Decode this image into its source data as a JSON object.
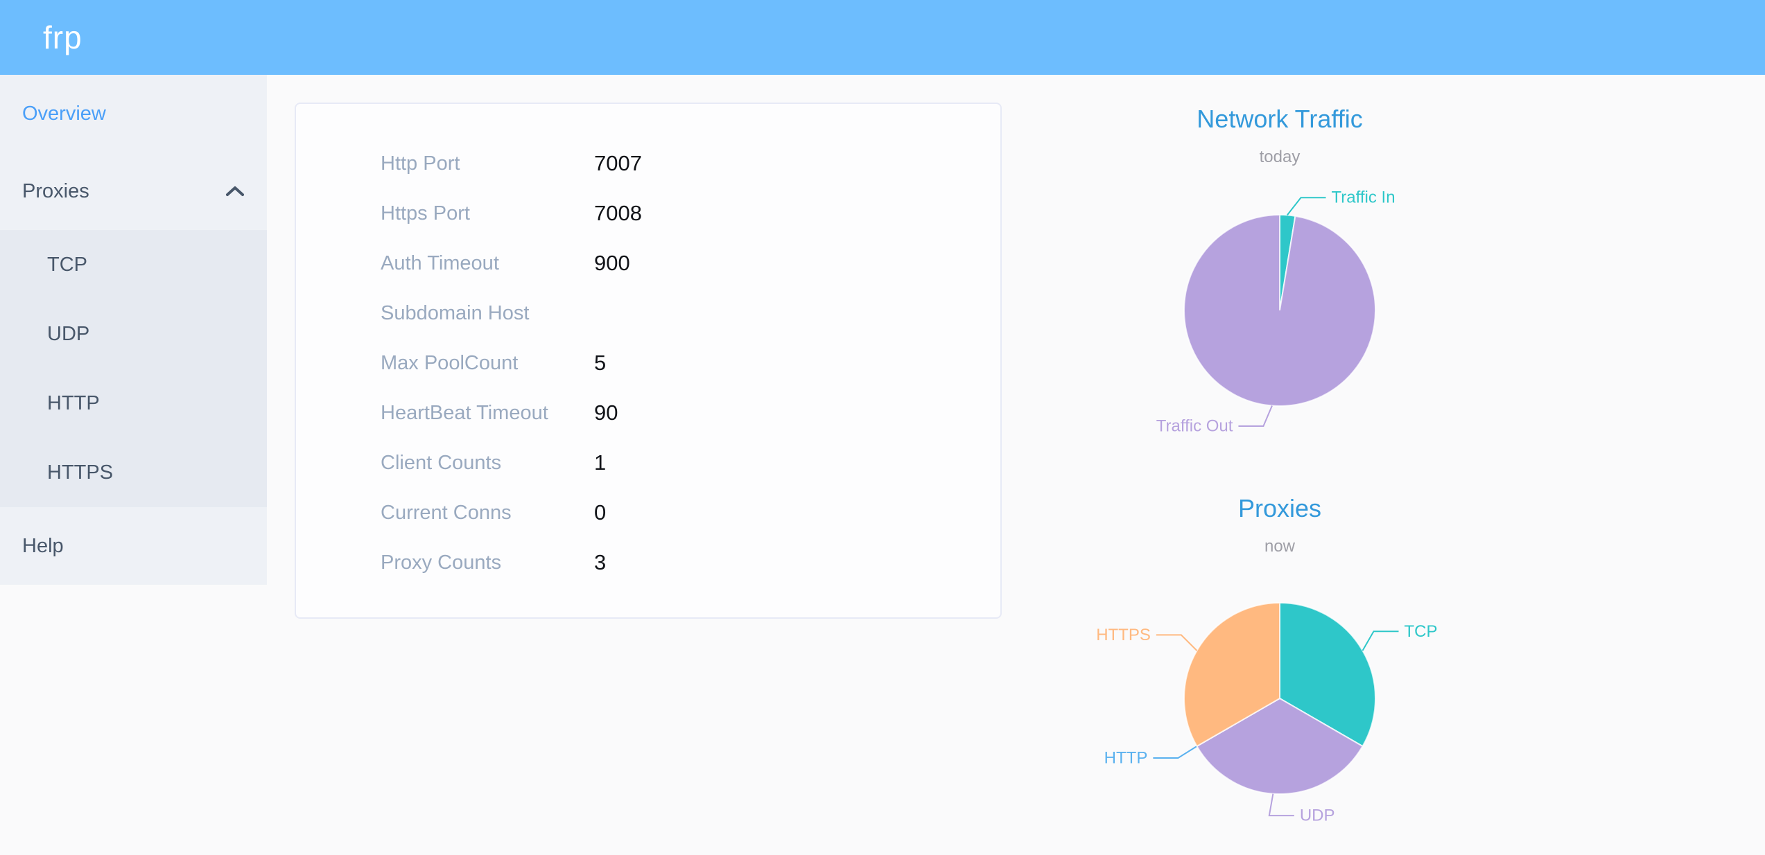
{
  "header": {
    "logo": "frp"
  },
  "sidebar": {
    "items": [
      {
        "label": "Overview",
        "active": true
      },
      {
        "label": "Proxies",
        "expanded": true,
        "icon": "chevron-up-icon",
        "children": [
          {
            "label": "TCP"
          },
          {
            "label": "UDP"
          },
          {
            "label": "HTTP"
          },
          {
            "label": "HTTPS"
          }
        ]
      },
      {
        "label": "Help"
      }
    ]
  },
  "overview_card": {
    "rows": [
      {
        "label": "Http Port",
        "value": "7007"
      },
      {
        "label": "Https Port",
        "value": "7008"
      },
      {
        "label": "Auth Timeout",
        "value": "900"
      },
      {
        "label": "Subdomain Host",
        "value": ""
      },
      {
        "label": "Max PoolCount",
        "value": "5"
      },
      {
        "label": "HeartBeat Timeout",
        "value": "90"
      },
      {
        "label": "Client Counts",
        "value": "1"
      },
      {
        "label": "Current Conns",
        "value": "0"
      },
      {
        "label": "Proxy Counts",
        "value": "3"
      }
    ]
  },
  "colors": {
    "header_bg": "#6DBDFE",
    "sidebar_bg": "#EEF1F6",
    "submenu_bg": "#E6EAF1",
    "menu_text": "#48576A",
    "menu_active": "#4A9FF8",
    "card_label": "#99A9BF",
    "chart_title": "#3399DB",
    "pie_teal": "#2EC7C9",
    "pie_purple": "#B6A2DE",
    "pie_blue": "#5AB1EF",
    "pie_orange": "#FFB980"
  },
  "chart_data": [
    {
      "type": "pie",
      "title": "Network Traffic",
      "subtitle": "today",
      "legend": "none",
      "labels": "outside-with-leader-lines",
      "values_are": "percent share estimated from arc angles (no numeric labels shown)",
      "slices": [
        {
          "label": "Traffic In",
          "value": 2.6,
          "color": "#2EC7C9",
          "attach_deg": 4.5,
          "leader_dir_deg": 38,
          "label_side": "right"
        },
        {
          "label": "Traffic Out",
          "value": 97.4,
          "color": "#B6A2DE",
          "attach_deg": 184.6,
          "leader_dir_deg": 203,
          "label_side": "left"
        }
      ]
    },
    {
      "type": "pie",
      "title": "Proxies",
      "subtitle": "now",
      "legend": "none",
      "labels": "outside-with-leader-lines",
      "values_are": "proxy counts by type (three equal thirds visible, HTTP slice empty)",
      "slices": [
        {
          "label": "TCP",
          "value": 1,
          "color": "#2EC7C9",
          "attach_deg": 60,
          "leader_dir_deg": 30,
          "label_side": "right"
        },
        {
          "label": "UDP",
          "value": 1,
          "color": "#B6A2DE",
          "attach_deg": 184,
          "leader_dir_deg": 190,
          "label_side": "right"
        },
        {
          "label": "HTTP",
          "value": 0,
          "color": "#5AB1EF",
          "attach_deg": 240,
          "leader_dir_deg": 238,
          "label_side": "left"
        },
        {
          "label": "HTTPS",
          "value": 1,
          "color": "#FFB980",
          "attach_deg": 300,
          "leader_dir_deg": 315,
          "label_side": "left"
        }
      ]
    }
  ]
}
